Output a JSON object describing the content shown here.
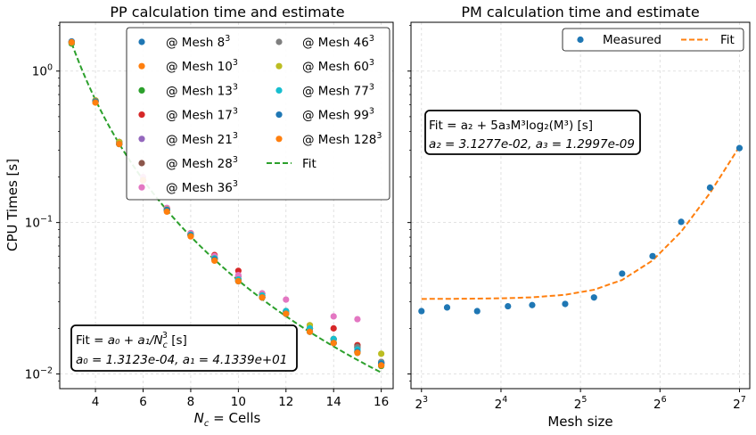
{
  "chart_data": [
    {
      "type": "scatter",
      "title": "PP calculation time and estimate",
      "xlabel_main": "N",
      "xlabel_sub": "c",
      "xlabel_rest": " = Cells",
      "ylabel": "CPU Times [s]",
      "xlim": [
        2.5,
        16.5
      ],
      "ylim": [
        0.008,
        2.1
      ],
      "yscale": "log",
      "grid": true,
      "legend_position": "upper-right",
      "x_ticks": [
        4,
        6,
        8,
        10,
        12,
        14,
        16
      ],
      "y_ticks": [
        {
          "value": 0.01,
          "base": "10",
          "exp": "−2"
        },
        {
          "value": 0.1,
          "base": "10",
          "exp": "−1"
        },
        {
          "value": 1,
          "base": "10",
          "exp": "0"
        }
      ],
      "series": [
        {
          "name": "@ Mesh 8",
          "exp": "3",
          "color": "#1f77b4",
          "x": [
            3,
            4,
            5,
            6,
            7,
            8,
            9,
            10,
            11,
            12,
            13,
            14,
            15,
            16
          ],
          "y": [
            1.57,
            0.63,
            0.34,
            0.19,
            0.122,
            0.083,
            0.058,
            0.042,
            0.033,
            0.026,
            0.02,
            0.017,
            0.015,
            0.0118
          ]
        },
        {
          "name": "@ Mesh 10",
          "exp": "3",
          "color": "#ff7f0e",
          "x": [
            3,
            4,
            5,
            6,
            7,
            8,
            9,
            10,
            11,
            12,
            13,
            14,
            15,
            16
          ],
          "y": [
            1.55,
            0.62,
            0.33,
            0.19,
            0.121,
            0.082,
            0.058,
            0.041,
            0.032,
            0.025,
            0.02,
            0.016,
            0.014,
            0.0115
          ]
        },
        {
          "name": "@ Mesh 13",
          "exp": "3",
          "color": "#2ca02c",
          "x": [
            3,
            4,
            5,
            6,
            7,
            8,
            9,
            10,
            11,
            12,
            13,
            14,
            15,
            16
          ],
          "y": [
            1.52,
            0.63,
            0.33,
            0.19,
            0.122,
            0.082,
            0.057,
            0.041,
            0.032,
            0.025,
            0.019,
            0.016,
            0.0138,
            0.0113
          ]
        },
        {
          "name": "@ Mesh 17",
          "exp": "3",
          "color": "#d62728",
          "x": [
            3,
            4,
            5,
            6,
            7,
            8,
            9,
            10,
            11,
            12,
            13,
            14,
            15,
            16
          ],
          "y": [
            1.55,
            0.64,
            0.34,
            0.19,
            0.124,
            0.085,
            0.061,
            0.048,
            0.034,
            0.026,
            0.02,
            0.02,
            0.0155,
            0.012
          ]
        },
        {
          "name": "@ Mesh 21",
          "exp": "3",
          "color": "#9467bd",
          "x": [
            3,
            4,
            5,
            6,
            7,
            8,
            9,
            10,
            11,
            12,
            13,
            14,
            15,
            16
          ],
          "y": [
            1.56,
            0.63,
            0.34,
            0.19,
            0.123,
            0.083,
            0.059,
            0.044,
            0.034,
            0.026,
            0.02,
            0.017,
            0.0148,
            0.0118
          ]
        },
        {
          "name": "@ Mesh 28",
          "exp": "3",
          "color": "#8c564b",
          "x": [
            3,
            4,
            5,
            6,
            7,
            8,
            9,
            10,
            11,
            12,
            13,
            14,
            15,
            16
          ],
          "y": [
            1.55,
            0.63,
            0.33,
            0.19,
            0.121,
            0.082,
            0.058,
            0.042,
            0.032,
            0.025,
            0.02,
            0.017,
            0.0152,
            0.0119
          ]
        },
        {
          "name": "@ Mesh 36",
          "exp": "3",
          "color": "#e377c2",
          "x": [
            3,
            4,
            5,
            6,
            7,
            8,
            9,
            10,
            11,
            12,
            13,
            14,
            15,
            16
          ],
          "y": [
            1.55,
            0.64,
            0.34,
            0.2,
            0.125,
            0.085,
            0.06,
            0.045,
            0.034,
            0.031,
            0.021,
            0.024,
            0.023,
            0.012
          ]
        },
        {
          "name": "@ Mesh 46",
          "exp": "3",
          "color": "#7f7f7f",
          "x": [
            3,
            4,
            5,
            6,
            7,
            8,
            9,
            10,
            11,
            12,
            13,
            14,
            15,
            16
          ],
          "y": [
            1.56,
            0.63,
            0.33,
            0.19,
            0.122,
            0.083,
            0.058,
            0.042,
            0.032,
            0.025,
            0.02,
            0.017,
            0.015,
            0.012
          ]
        },
        {
          "name": "@ Mesh 60",
          "exp": "3",
          "color": "#bcbd22",
          "x": [
            3,
            4,
            5,
            6,
            7,
            8,
            9,
            10,
            11,
            12,
            13,
            14,
            15,
            16
          ],
          "y": [
            1.54,
            0.64,
            0.34,
            0.19,
            0.122,
            0.083,
            0.058,
            0.042,
            0.033,
            0.026,
            0.021,
            0.017,
            0.014,
            0.0136
          ]
        },
        {
          "name": "@ Mesh 77",
          "exp": "3",
          "color": "#17becf",
          "x": [
            3,
            4,
            5,
            6,
            7,
            8,
            9,
            10,
            11,
            12,
            13,
            14,
            15,
            16
          ],
          "y": [
            1.55,
            0.63,
            0.33,
            0.19,
            0.121,
            0.083,
            0.058,
            0.042,
            0.033,
            0.026,
            0.02,
            0.017,
            0.0145,
            0.0118
          ]
        },
        {
          "name": "@ Mesh 99",
          "exp": "3",
          "color": "#1f77b4",
          "x": [
            3,
            4,
            5,
            6,
            7,
            8,
            9,
            10,
            11,
            12,
            13,
            14,
            15,
            16
          ],
          "y": [
            1.56,
            0.63,
            0.33,
            0.19,
            0.121,
            0.082,
            0.057,
            0.041,
            0.032,
            0.025,
            0.019,
            0.016,
            0.014,
            0.0117
          ]
        },
        {
          "name": "@ Mesh 128",
          "exp": "3",
          "color": "#ff7f0e",
          "x": [
            3,
            4,
            5,
            6,
            7,
            8,
            9,
            10,
            11,
            12,
            13,
            14,
            15,
            16
          ],
          "y": [
            1.55,
            0.62,
            0.33,
            0.19,
            0.118,
            0.081,
            0.056,
            0.041,
            0.032,
            0.025,
            0.019,
            0.016,
            0.0138,
            0.0114
          ]
        }
      ],
      "fit_line": {
        "name": "Fit",
        "color": "#2ca02c",
        "a0": 0.00013123,
        "a1": 41.339,
        "x_range": [
          3,
          16
        ]
      },
      "textbox": {
        "line1_prefix": "Fit = ",
        "line1_formula": "a₀ + a₁/N",
        "line1_sub": "c",
        "line1_sup": "3",
        "line1_suffix": "  [s]",
        "line2": "a₀ = 1.3123e-04,  a₁ = 4.1339e+01"
      }
    },
    {
      "type": "scatter",
      "title": "PM calculation time and estimate",
      "xlabel": "Mesh size",
      "ylabel": "",
      "xscale": "log2",
      "yscale": "log",
      "xlim": [
        7.3,
        140
      ],
      "ylim": [
        0.008,
        2.1
      ],
      "grid": true,
      "legend_position": "upper-right",
      "x_ticks": [
        {
          "value": 8,
          "base": "2",
          "exp": "3"
        },
        {
          "value": 16,
          "base": "2",
          "exp": "4"
        },
        {
          "value": 32,
          "base": "2",
          "exp": "5"
        },
        {
          "value": 64,
          "base": "2",
          "exp": "6"
        },
        {
          "value": 128,
          "base": "2",
          "exp": "7"
        }
      ],
      "series": [
        {
          "name": "Measured",
          "color": "#1f77b4",
          "x": [
            8,
            10,
            13,
            17,
            21,
            28,
            36,
            46,
            60,
            77,
            99,
            128
          ],
          "y": [
            0.026,
            0.0275,
            0.026,
            0.028,
            0.0285,
            0.029,
            0.032,
            0.046,
            0.06,
            0.101,
            0.17,
            0.31
          ]
        }
      ],
      "fit_line": {
        "name": "Fit",
        "color": "#ff7f0e",
        "a2": 0.031277,
        "a3": 1.2997e-09,
        "x": [
          8,
          10,
          13,
          17,
          21,
          28,
          36,
          46,
          60,
          77,
          99,
          128
        ]
      },
      "textbox": {
        "line1": "Fit = a₂ + 5a₃M³log₂(M³)  [s]",
        "line2": "a₂ = 3.1277e-02,  a₃ = 1.2997e-09"
      }
    }
  ]
}
